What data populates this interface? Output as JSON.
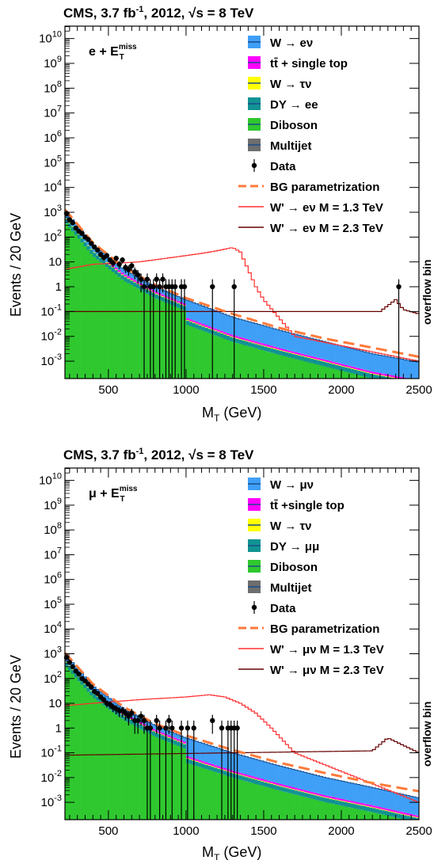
{
  "colors": {
    "w_signal_fill": "#3f9ff7",
    "ttbar_fill": "#ff00ff",
    "w_tau_fill": "#ffff00",
    "dy_fill": "#119393",
    "diboson_fill": "#2fc82f",
    "multijet_fill": "#6e6e6e",
    "bg_param": "#ff7a3a",
    "wprime_13": "#ff3030",
    "wprime_23": "#660000",
    "data": "#000000"
  },
  "chart_data": [
    {
      "type": "area",
      "header": "CMS,  3.7 fb",
      "header_exp": "-1",
      "header_tail": ",  2012,  ",
      "header_sqrt": "s = 8 TeV",
      "channel": "e + E",
      "channel_sup": "miss",
      "channel_sub": "T",
      "xlabel": "M",
      "xlabel_sub": "T",
      "xlabel_unit": "  (GeV)",
      "ylabel": "Events / 20 GeV",
      "xlim": [
        220,
        2500
      ],
      "ylim_log10": [
        -3.7,
        10.5
      ],
      "xticks": [
        "500",
        "1000",
        "1500",
        "2000",
        "2500"
      ],
      "yticks": [
        "10^-3",
        "10^-2",
        "10^-1",
        "1",
        "10",
        "10^2",
        "10^3",
        "10^4",
        "10^5",
        "10^6",
        "10^7",
        "10^8",
        "10^9",
        "10^10"
      ],
      "overflow_label": "overflow bin",
      "legend": [
        {
          "key": "w",
          "label": "W → eν",
          "style": "fill"
        },
        {
          "key": "tt",
          "label": "tt̄ + single top",
          "style": "fill"
        },
        {
          "key": "wt",
          "label": "W → τν",
          "style": "fill"
        },
        {
          "key": "dy",
          "label": "DY → ee",
          "style": "fill"
        },
        {
          "key": "db",
          "label": "Diboson",
          "style": "fill"
        },
        {
          "key": "mj",
          "label": "Multijet",
          "style": "fill"
        },
        {
          "key": "data",
          "label": "Data",
          "style": "marker"
        },
        {
          "key": "bg",
          "label": "BG parametrization",
          "style": "dash"
        },
        {
          "key": "s13",
          "label": "W' → eν  M = 1.3 TeV",
          "style": "line"
        },
        {
          "key": "s23",
          "label": "W' → eν  M = 2.3 TeV",
          "style": "line"
        }
      ],
      "data_points": [
        {
          "x": 230,
          "y": 900
        },
        {
          "x": 250,
          "y": 500
        },
        {
          "x": 270,
          "y": 380
        },
        {
          "x": 290,
          "y": 230
        },
        {
          "x": 310,
          "y": 170
        },
        {
          "x": 330,
          "y": 140
        },
        {
          "x": 350,
          "y": 100
        },
        {
          "x": 370,
          "y": 80
        },
        {
          "x": 390,
          "y": 55
        },
        {
          "x": 410,
          "y": 40
        },
        {
          "x": 430,
          "y": 30
        },
        {
          "x": 450,
          "y": 20
        },
        {
          "x": 470,
          "y": 15
        },
        {
          "x": 490,
          "y": 18
        },
        {
          "x": 510,
          "y": 12
        },
        {
          "x": 530,
          "y": 9
        },
        {
          "x": 550,
          "y": 14
        },
        {
          "x": 570,
          "y": 8
        },
        {
          "x": 590,
          "y": 12
        },
        {
          "x": 610,
          "y": 6
        },
        {
          "x": 630,
          "y": 5
        },
        {
          "x": 650,
          "y": 7
        },
        {
          "x": 670,
          "y": 4
        },
        {
          "x": 690,
          "y": 3
        },
        {
          "x": 710,
          "y": 2
        },
        {
          "x": 730,
          "y": 1
        },
        {
          "x": 750,
          "y": 2
        },
        {
          "x": 770,
          "y": 1
        },
        {
          "x": 790,
          "y": 1
        },
        {
          "x": 810,
          "y": 2
        },
        {
          "x": 830,
          "y": 1
        },
        {
          "x": 850,
          "y": 2
        },
        {
          "x": 870,
          "y": 1
        },
        {
          "x": 890,
          "y": 1
        },
        {
          "x": 910,
          "y": 1
        },
        {
          "x": 930,
          "y": 1
        },
        {
          "x": 970,
          "y": 1
        },
        {
          "x": 990,
          "y": 1
        },
        {
          "x": 1170,
          "y": 1
        },
        {
          "x": 1310,
          "y": 1
        },
        {
          "x": 2370,
          "y": 1
        }
      ],
      "bg_param": {
        "x": [
          220,
          400,
          600,
          800,
          1000,
          1300,
          1600,
          1900,
          2200,
          2500
        ],
        "y": [
          1300,
          60,
          6,
          1.2,
          0.35,
          0.08,
          0.022,
          0.008,
          0.0035,
          0.0015
        ]
      },
      "stack_total": {
        "x": [
          220,
          400,
          600,
          800,
          1000,
          1300,
          1600,
          1900,
          2200,
          2500
        ],
        "y": [
          1200,
          50,
          5,
          1.0,
          0.3,
          0.06,
          0.018,
          0.006,
          0.002,
          0.0009
        ]
      },
      "wprime_13": {
        "x": [
          220,
          400,
          700,
          1000,
          1100,
          1200,
          1300,
          1350,
          1450,
          1500,
          1700,
          2500
        ],
        "y": [
          5,
          8,
          10,
          18,
          22,
          28,
          38,
          25,
          1,
          0.3,
          0.01,
          0.001
        ]
      },
      "wprime_23": {
        "x": [
          220,
          2250,
          2350,
          2400,
          2500
        ],
        "y": [
          0.1,
          0.1,
          0.3,
          0.12,
          0.08
        ]
      }
    },
    {
      "type": "area",
      "header": "CMS,  3.7 fb",
      "header_exp": "-1",
      "header_tail": ",  2012,  ",
      "header_sqrt": "s = 8 TeV",
      "channel": "μ + E",
      "channel_sup": "miss",
      "channel_sub": "T",
      "xlabel": "M",
      "xlabel_sub": "T",
      "xlabel_unit": "  (GeV)",
      "ylabel": "Events / 20 GeV",
      "xlim": [
        220,
        2500
      ],
      "ylim_log10": [
        -3.7,
        10.5
      ],
      "xticks": [
        "500",
        "1000",
        "1500",
        "2000",
        "2500"
      ],
      "yticks": [
        "10^-3",
        "10^-2",
        "10^-1",
        "1",
        "10",
        "10^2",
        "10^3",
        "10^4",
        "10^5",
        "10^6",
        "10^7",
        "10^8",
        "10^9",
        "10^10"
      ],
      "overflow_label": "overflow bin",
      "legend": [
        {
          "key": "w",
          "label": "W → μν",
          "style": "fill"
        },
        {
          "key": "tt",
          "label": "tt̄ +single top",
          "style": "fill"
        },
        {
          "key": "wt",
          "label": "W → τν",
          "style": "fill"
        },
        {
          "key": "dy",
          "label": "DY → μμ",
          "style": "fill"
        },
        {
          "key": "db",
          "label": "Diboson",
          "style": "fill"
        },
        {
          "key": "mj",
          "label": "Multijet",
          "style": "fill"
        },
        {
          "key": "data",
          "label": "Data",
          "style": "marker"
        },
        {
          "key": "bg",
          "label": "BG parametrization",
          "style": "dash"
        },
        {
          "key": "s13",
          "label": "W' → μν  M = 1.3 TeV",
          "style": "line"
        },
        {
          "key": "s23",
          "label": "W' → μν  M = 2.3 TeV",
          "style": "line"
        }
      ],
      "data_points": [
        {
          "x": 230,
          "y": 700
        },
        {
          "x": 250,
          "y": 450
        },
        {
          "x": 270,
          "y": 300
        },
        {
          "x": 290,
          "y": 200
        },
        {
          "x": 310,
          "y": 150
        },
        {
          "x": 330,
          "y": 100
        },
        {
          "x": 350,
          "y": 80
        },
        {
          "x": 370,
          "y": 60
        },
        {
          "x": 390,
          "y": 45
        },
        {
          "x": 410,
          "y": 30
        },
        {
          "x": 430,
          "y": 25
        },
        {
          "x": 450,
          "y": 18
        },
        {
          "x": 470,
          "y": 14
        },
        {
          "x": 490,
          "y": 10
        },
        {
          "x": 510,
          "y": 9
        },
        {
          "x": 530,
          "y": 7
        },
        {
          "x": 550,
          "y": 6
        },
        {
          "x": 570,
          "y": 5
        },
        {
          "x": 590,
          "y": 5
        },
        {
          "x": 610,
          "y": 4
        },
        {
          "x": 630,
          "y": 3
        },
        {
          "x": 650,
          "y": 4
        },
        {
          "x": 670,
          "y": 2
        },
        {
          "x": 690,
          "y": 2
        },
        {
          "x": 710,
          "y": 3
        },
        {
          "x": 730,
          "y": 2
        },
        {
          "x": 750,
          "y": 1
        },
        {
          "x": 770,
          "y": 1
        },
        {
          "x": 810,
          "y": 2
        },
        {
          "x": 830,
          "y": 1
        },
        {
          "x": 870,
          "y": 1
        },
        {
          "x": 890,
          "y": 2
        },
        {
          "x": 910,
          "y": 1
        },
        {
          "x": 970,
          "y": 1
        },
        {
          "x": 1010,
          "y": 1
        },
        {
          "x": 1050,
          "y": 1
        },
        {
          "x": 1170,
          "y": 2
        },
        {
          "x": 1230,
          "y": 1
        },
        {
          "x": 1270,
          "y": 1
        },
        {
          "x": 1290,
          "y": 1
        },
        {
          "x": 1310,
          "y": 1
        },
        {
          "x": 1330,
          "y": 1
        }
      ],
      "bg_param": {
        "x": [
          220,
          400,
          600,
          800,
          1000,
          1300,
          1600,
          1900,
          2200,
          2500
        ],
        "y": [
          1100,
          60,
          7,
          1.5,
          0.5,
          0.13,
          0.04,
          0.015,
          0.006,
          0.0028
        ]
      },
      "stack_total": {
        "x": [
          220,
          400,
          600,
          800,
          1000,
          1300,
          1600,
          1900,
          2200,
          2500
        ],
        "y": [
          1000,
          50,
          6,
          1.3,
          0.4,
          0.1,
          0.03,
          0.01,
          0.004,
          0.0015
        ]
      },
      "wprime_13": {
        "x": [
          220,
          400,
          700,
          1000,
          1150,
          1250,
          1350,
          1450,
          1550,
          1700,
          2500
        ],
        "y": [
          8,
          10,
          14,
          18,
          22,
          18,
          10,
          4,
          1,
          0.1,
          0.001
        ]
      },
      "wprime_23": {
        "x": [
          220,
          2200,
          2300,
          2400,
          2500
        ],
        "y": [
          0.08,
          0.12,
          0.4,
          0.2,
          0.1
        ]
      }
    }
  ]
}
